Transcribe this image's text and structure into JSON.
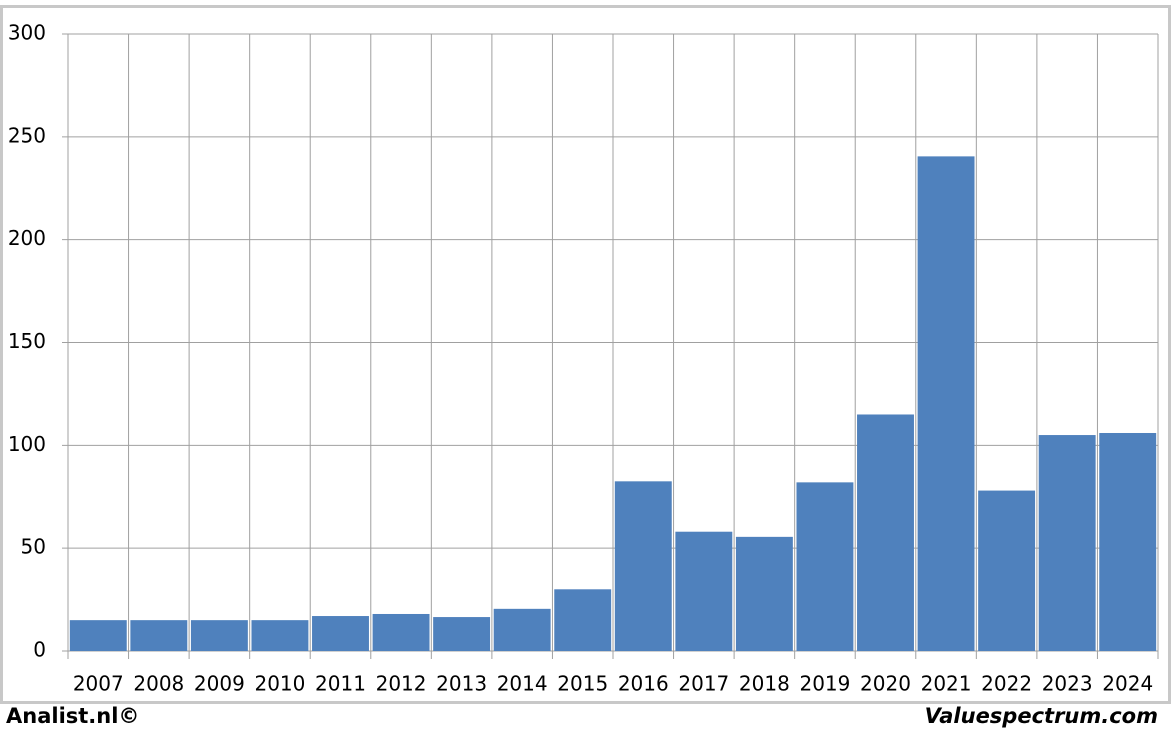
{
  "chart_data": {
    "type": "bar",
    "categories": [
      "2007",
      "2008",
      "2009",
      "2010",
      "2011",
      "2012",
      "2013",
      "2014",
      "2015",
      "2016",
      "2017",
      "2018",
      "2019",
      "2020",
      "2021",
      "2022",
      "2023",
      "2024"
    ],
    "values": [
      15,
      15,
      15,
      15,
      17,
      18,
      16.5,
      20.5,
      30,
      82.5,
      58,
      55.5,
      82,
      115,
      240.5,
      78,
      105,
      106
    ],
    "color": "#4f81bd",
    "ylim": [
      0,
      300
    ],
    "yticks": [
      0,
      50,
      100,
      150,
      200,
      250,
      300
    ],
    "grid": true,
    "footer_left": "Analist.nl©",
    "footer_right": "Valuespectrum.com"
  }
}
